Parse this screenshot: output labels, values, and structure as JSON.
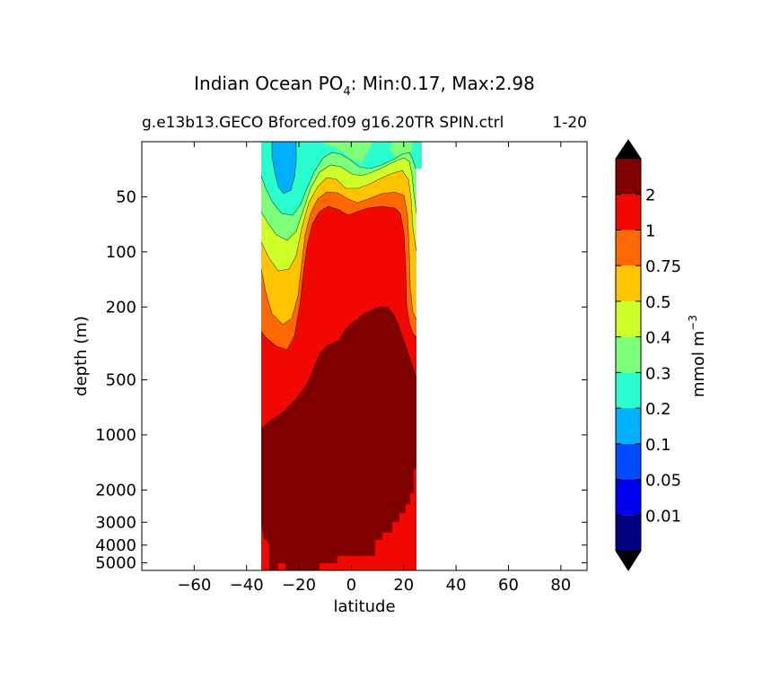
{
  "chart_data": {
    "type": "heatmap",
    "title": "Indian Ocean PO",
    "title_subscript": "4",
    "title_stats": ": Min:0.17, Max:2.98",
    "subtitle_left": "g.e13b13.GECO Bforced.f09 g16.20TR SPIN.ctrl",
    "subtitle_right": "1-20",
    "xlabel": "latitude",
    "ylabel": "depth (m)",
    "xlim": [
      -80,
      90
    ],
    "x_ticks": [
      "−60",
      "−40",
      "−20",
      "0",
      "20",
      "40",
      "60",
      "80"
    ],
    "x_tick_values": [
      -60,
      -40,
      -20,
      0,
      20,
      40,
      60,
      80
    ],
    "y_scale": "log",
    "ylim": [
      5500,
      25
    ],
    "y_ticks": [
      "50",
      "100",
      "200",
      "500",
      "1000",
      "2000",
      "3000",
      "4000",
      "5000"
    ],
    "y_tick_values": [
      50,
      100,
      200,
      500,
      1000,
      2000,
      3000,
      4000,
      5000
    ],
    "colorbar": {
      "label": "mmol m",
      "label_superscript": "−3",
      "levels": [
        "0.01",
        "0.05",
        "0.1",
        "0.2",
        "0.3",
        "0.4",
        "0.5",
        "0.75",
        "1",
        "2"
      ],
      "colors": [
        "#000080",
        "#0000f1",
        "#004cff",
        "#00b0ff",
        "#29ffce",
        "#7dff7a",
        "#ceff29",
        "#ffc400",
        "#ff6800",
        "#f10800",
        "#800000"
      ],
      "extend": "both",
      "extend_low_color": "#000000",
      "extend_high_color": "#000000"
    },
    "data_extent_lat": [
      -33,
      26
    ],
    "min": 0.17,
    "max": 2.98
  }
}
